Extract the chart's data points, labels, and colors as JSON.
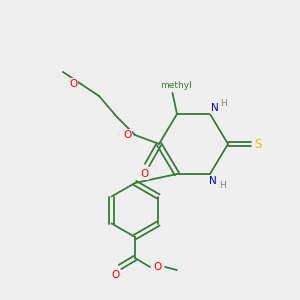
{
  "bg_color": "#efefef",
  "bond_color": "#3a7a3a",
  "atom_colors": {
    "O": "#ff0000",
    "N": "#0000cc",
    "S": "#cccc00",
    "H": "#808080",
    "C": "#3a7a3a"
  },
  "font_size": 7.5,
  "line_width": 1.3
}
